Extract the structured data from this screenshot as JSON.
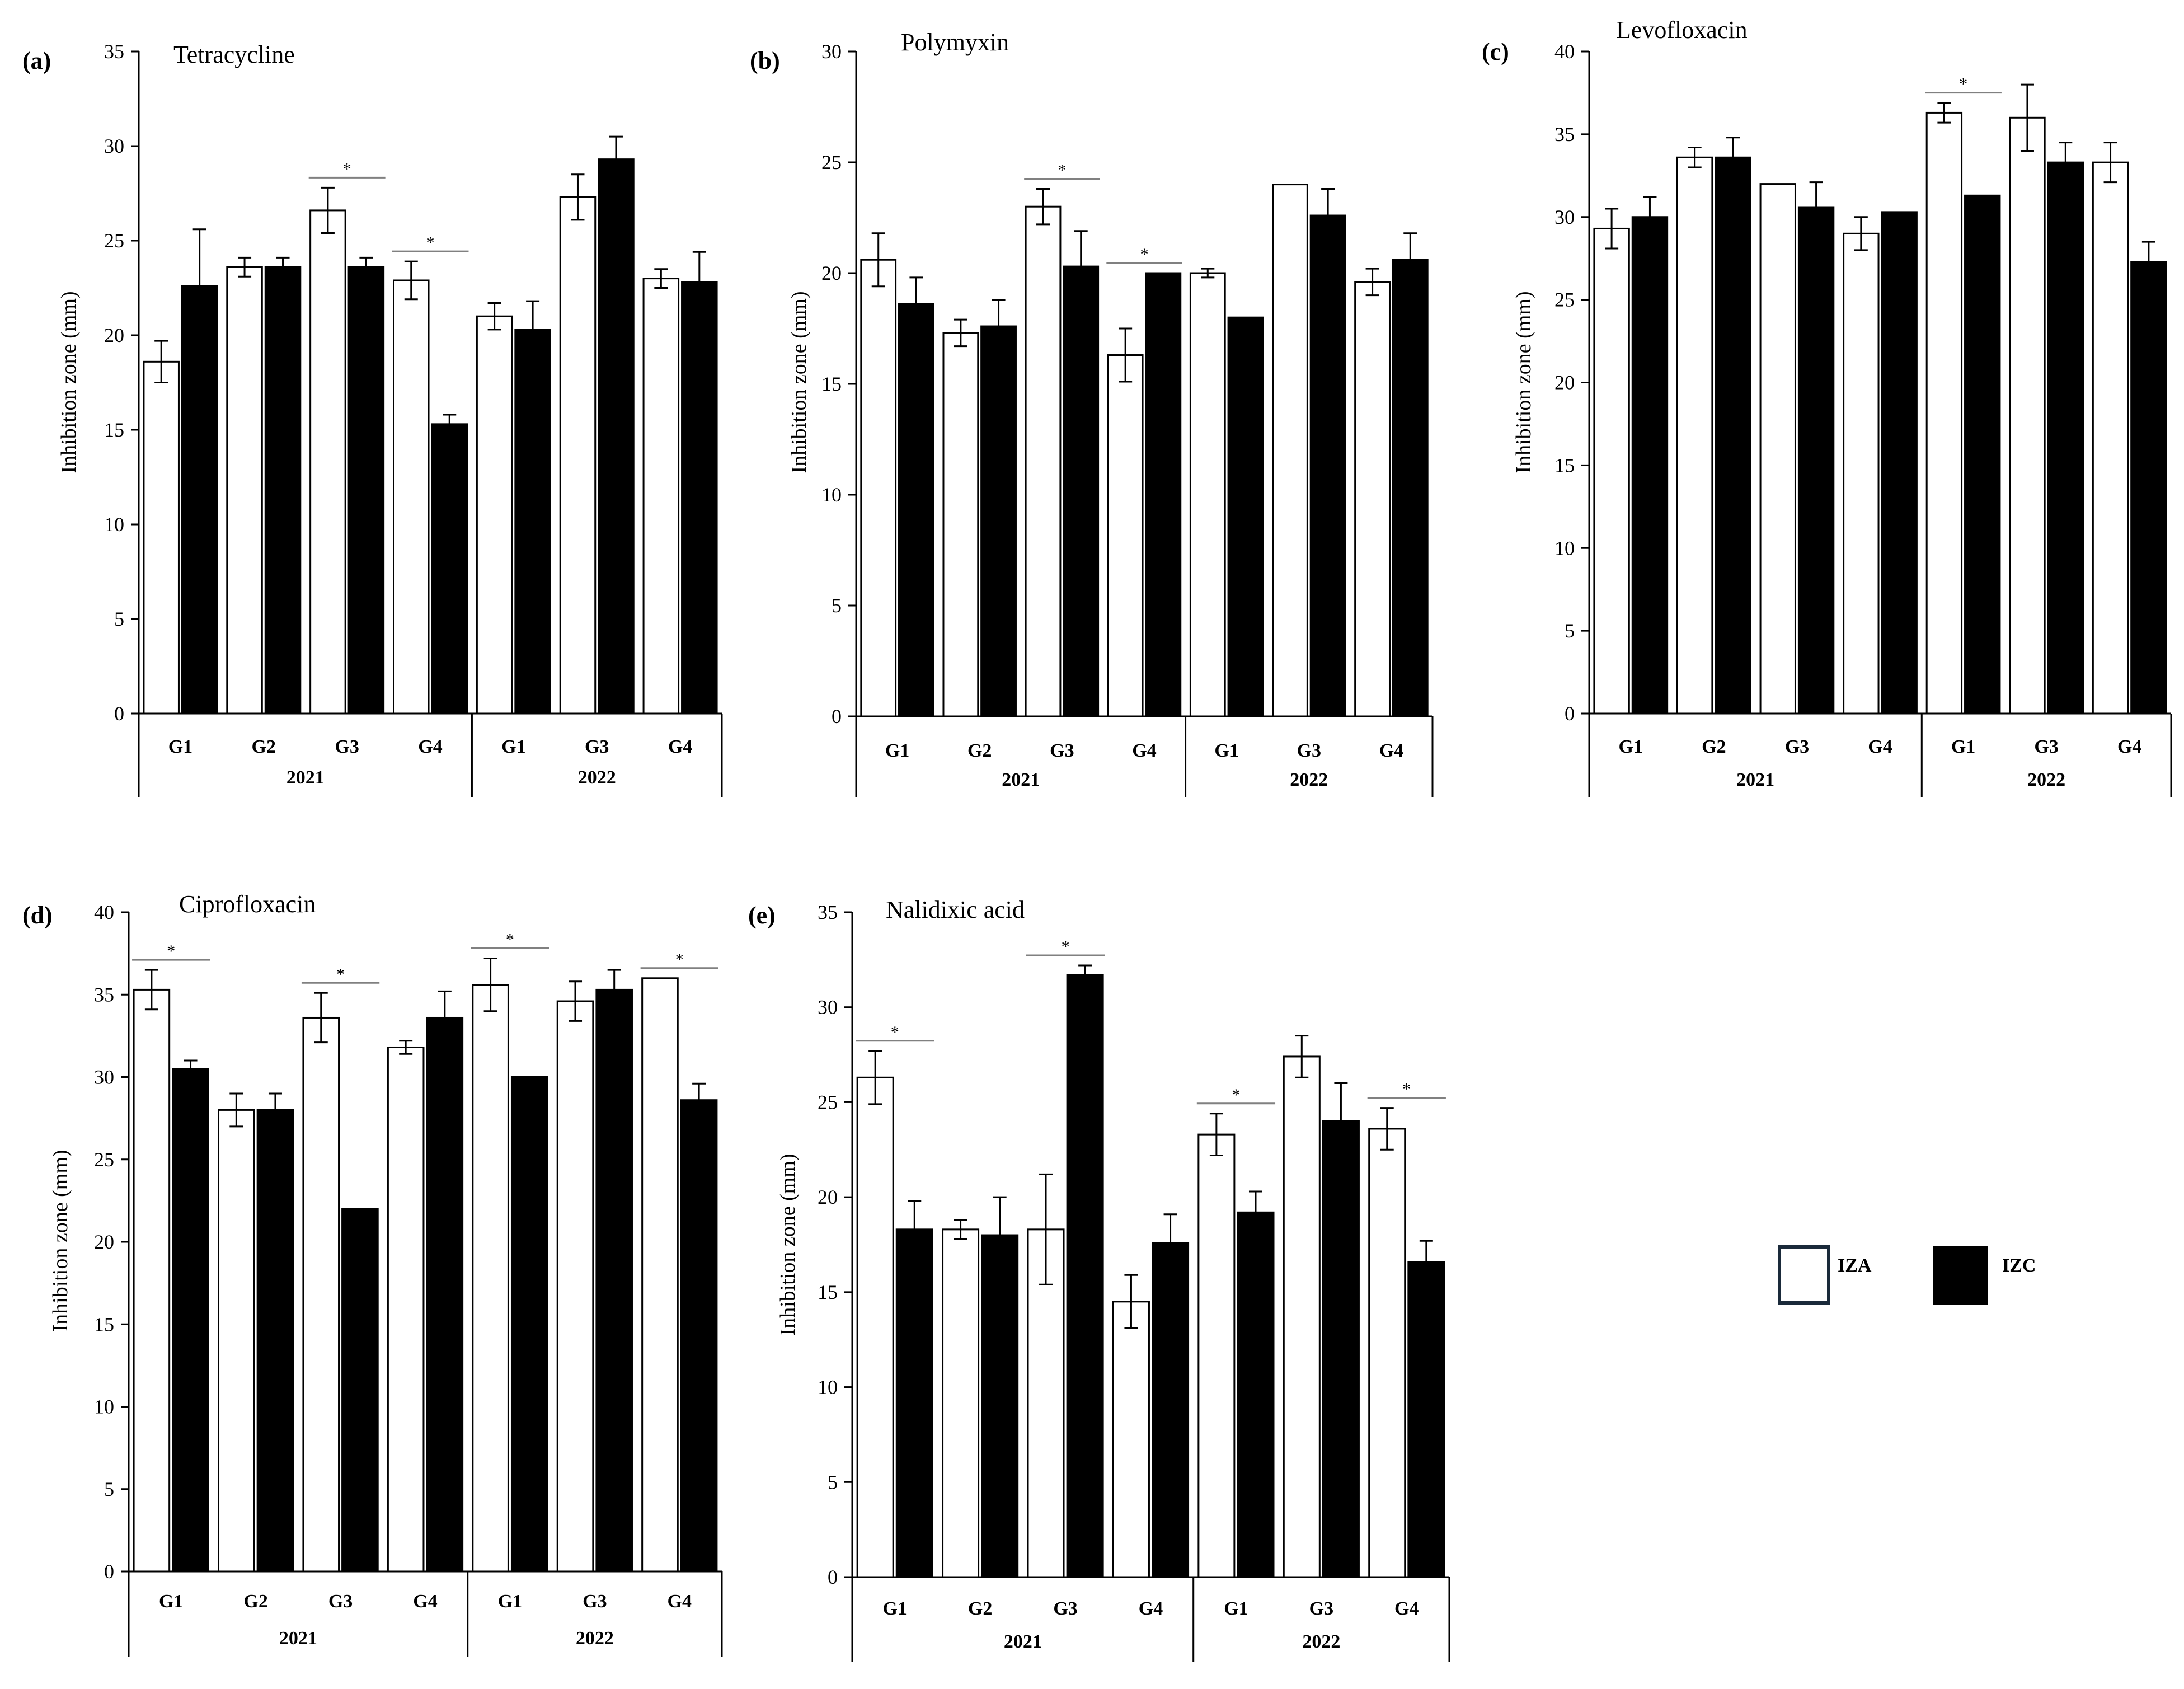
{
  "figure": {
    "legend": [
      {
        "name": "IZA",
        "fill": "#ffffff",
        "stroke": "#1a2a3a"
      },
      {
        "name": "IZC",
        "fill": "#000000",
        "stroke": "#000000"
      }
    ],
    "colors": {
      "bar_outline": "#000000",
      "sig_line": "#808080"
    }
  },
  "chart_data": [
    {
      "type": "bar",
      "panel_label": "(a)",
      "title": "Tetracycline",
      "ylabel": "Inhibition zone (mm)",
      "ylim": [
        0,
        35
      ],
      "ytick_step": 5,
      "groups": [
        {
          "year": "2021",
          "categories": [
            "G1",
            "G2",
            "G3",
            "G4"
          ]
        },
        {
          "year": "2022",
          "categories": [
            "G1",
            "G3",
            "G4"
          ]
        }
      ],
      "series": [
        {
          "name": "IZA",
          "values": [
            18.6,
            23.6,
            26.6,
            22.9,
            21.0,
            27.3,
            23.0
          ],
          "errors": [
            1.1,
            0.5,
            1.2,
            1.0,
            0.7,
            1.2,
            0.5
          ]
        },
        {
          "name": "IZC",
          "values": [
            22.6,
            23.6,
            23.6,
            15.3,
            20.3,
            29.3,
            22.8
          ],
          "errors": [
            3.0,
            0.5,
            0.5,
            0.5,
            1.5,
            1.2,
            1.6
          ]
        }
      ],
      "significance": [
        {
          "category_index": 2,
          "label": "*"
        },
        {
          "category_index": 3,
          "label": "*"
        }
      ]
    },
    {
      "type": "bar",
      "panel_label": "(b)",
      "title": "Polymyxin",
      "ylabel": "Inhibition zone (mm)",
      "ylim": [
        0,
        30
      ],
      "ytick_step": 5,
      "groups": [
        {
          "year": "2021",
          "categories": [
            "G1",
            "G2",
            "G3",
            "G4"
          ]
        },
        {
          "year": "2022",
          "categories": [
            "G1",
            "G3",
            "G4"
          ]
        }
      ],
      "series": [
        {
          "name": "IZA",
          "values": [
            20.6,
            17.3,
            23.0,
            16.3,
            20.0,
            24.0,
            19.6
          ],
          "errors": [
            1.2,
            0.6,
            0.8,
            1.2,
            0.2,
            0.0,
            0.6
          ]
        },
        {
          "name": "IZC",
          "values": [
            18.6,
            17.6,
            20.3,
            20.0,
            18.0,
            22.6,
            20.6
          ],
          "errors": [
            1.2,
            1.2,
            1.6,
            0.0,
            0.0,
            1.2,
            1.2
          ]
        }
      ],
      "significance": [
        {
          "category_index": 2,
          "label": "*"
        },
        {
          "category_index": 3,
          "label": "*"
        }
      ]
    },
    {
      "type": "bar",
      "panel_label": "(c)",
      "title": "Levofloxacin",
      "ylabel": "Inhibition zone (mm)",
      "ylim": [
        0,
        40
      ],
      "ytick_step": 5,
      "groups": [
        {
          "year": "2021",
          "categories": [
            "G1",
            "G2",
            "G3",
            "G4"
          ]
        },
        {
          "year": "2022",
          "categories": [
            "G1",
            "G3",
            "G4"
          ]
        }
      ],
      "series": [
        {
          "name": "IZA",
          "values": [
            29.3,
            33.6,
            32.0,
            29.0,
            36.3,
            36.0,
            33.3
          ],
          "errors": [
            1.2,
            0.6,
            0.0,
            1.0,
            0.6,
            2.0,
            1.2
          ]
        },
        {
          "name": "IZC",
          "values": [
            30.0,
            33.6,
            30.6,
            30.3,
            31.3,
            33.3,
            27.3
          ],
          "errors": [
            1.2,
            1.2,
            1.5,
            0.0,
            0.0,
            1.2,
            1.2
          ]
        }
      ],
      "significance": [
        {
          "category_index": 4,
          "label": "*"
        }
      ]
    },
    {
      "type": "bar",
      "panel_label": "(d)",
      "title": "Ciprofloxacin",
      "ylabel": "Inhibition zone (mm)",
      "ylim": [
        0,
        40
      ],
      "ytick_step": 5,
      "groups": [
        {
          "year": "2021",
          "categories": [
            "G1",
            "G2",
            "G3",
            "G4"
          ]
        },
        {
          "year": "2022",
          "categories": [
            "G1",
            "G3",
            "G4"
          ]
        }
      ],
      "series": [
        {
          "name": "IZA",
          "values": [
            35.3,
            28.0,
            33.6,
            31.8,
            35.6,
            34.6,
            36.0
          ],
          "errors": [
            1.2,
            1.0,
            1.5,
            0.4,
            1.6,
            1.2,
            0.0
          ]
        },
        {
          "name": "IZC",
          "values": [
            30.5,
            28.0,
            22.0,
            33.6,
            30.0,
            35.3,
            28.6
          ],
          "errors": [
            0.5,
            1.0,
            0.0,
            1.6,
            0.0,
            1.2,
            1.0
          ]
        }
      ],
      "significance": [
        {
          "category_index": 0,
          "label": "*"
        },
        {
          "category_index": 2,
          "label": "*"
        },
        {
          "category_index": 4,
          "label": "*"
        },
        {
          "category_index": 6,
          "label": "*"
        }
      ]
    },
    {
      "type": "bar",
      "panel_label": "(e)",
      "title": "Nalidixic acid",
      "ylabel": "Inhibition zone (mm)",
      "ylim": [
        0,
        35
      ],
      "ytick_step": 5,
      "groups": [
        {
          "year": "2021",
          "categories": [
            "G1",
            "G2",
            "G3",
            "G4"
          ]
        },
        {
          "year": "2022",
          "categories": [
            "G1",
            "G3",
            "G4"
          ]
        }
      ],
      "series": [
        {
          "name": "IZA",
          "values": [
            26.3,
            18.3,
            18.3,
            14.5,
            23.3,
            27.4,
            23.6
          ],
          "errors": [
            1.4,
            0.5,
            2.9,
            1.4,
            1.1,
            1.1,
            1.1
          ]
        },
        {
          "name": "IZC",
          "values": [
            18.3,
            18.0,
            31.7,
            17.6,
            19.2,
            24.0,
            16.6
          ],
          "errors": [
            1.5,
            2.0,
            0.5,
            1.5,
            1.1,
            2.0,
            1.1
          ]
        }
      ],
      "significance": [
        {
          "category_index": 0,
          "label": "*"
        },
        {
          "category_index": 2,
          "label": "*"
        },
        {
          "category_index": 4,
          "label": "*"
        },
        {
          "category_index": 6,
          "label": "*"
        }
      ]
    }
  ]
}
